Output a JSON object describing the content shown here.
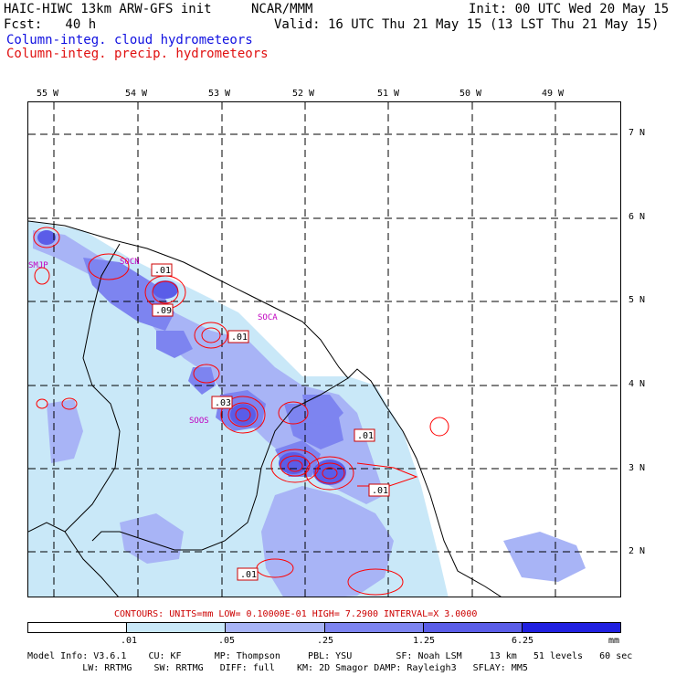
{
  "header": {
    "line1_left": "HAIC-HIWC 13km ARW-GFS init",
    "line1_mid": "NCAR/MMM",
    "line1_right": "Init: 00 UTC Wed 20 May 15",
    "line2_left": "Fcst:   40 h",
    "line2_right": "Valid: 16 UTC Thu 21 May 15 (13 LST Thu 21 May 15)",
    "field1": "Column-integ. cloud hydrometeors",
    "field2": "Column-integ. precip. hydrometeors"
  },
  "colors": {
    "field1": "#1010e0",
    "field2": "#e01010",
    "cloud_shades": [
      "#ffffff",
      "#c9e8f8",
      "#a8b4f6",
      "#7d84f0",
      "#5a5de8",
      "#2020e0"
    ],
    "precip_contour": "#ff0000",
    "station_label": "#c000c0"
  },
  "map": {
    "lon_labels": [
      "55 W",
      "54 W",
      "53 W",
      "52 W",
      "51 W",
      "50 W",
      "49 W"
    ],
    "lat_labels": [
      "7 N",
      "6 N",
      "5 N",
      "4 N",
      "3 N",
      "2 N"
    ],
    "stations": [
      "SMJP",
      "SOCN",
      "SOCA",
      "SOOS"
    ],
    "contour_labels": [
      ".01",
      ".09",
      ".01",
      ".03",
      ".01",
      ".01",
      ".01"
    ]
  },
  "contour_info": {
    "text": "CONTOURS:  UNITS=mm   LOW= 0.10000E-01   HIGH=  7.2900      INTERVAL=X  3.0000"
  },
  "colorbar": {
    "labels": [
      ".01",
      ".05",
      ".25",
      "1.25",
      "6.25"
    ],
    "unit": "mm"
  },
  "model_info": {
    "line1": "Model Info: V3.6.1    CU: KF      MP: Thompson     PBL: YSU        SF: Noah LSM     13 km   51 levels   60 sec",
    "line2": "          LW: RRTMG    SW: RRTMG   DIFF: full    KM: 2D Smagor DAMP: Rayleigh3   SFLAY: MM5"
  }
}
